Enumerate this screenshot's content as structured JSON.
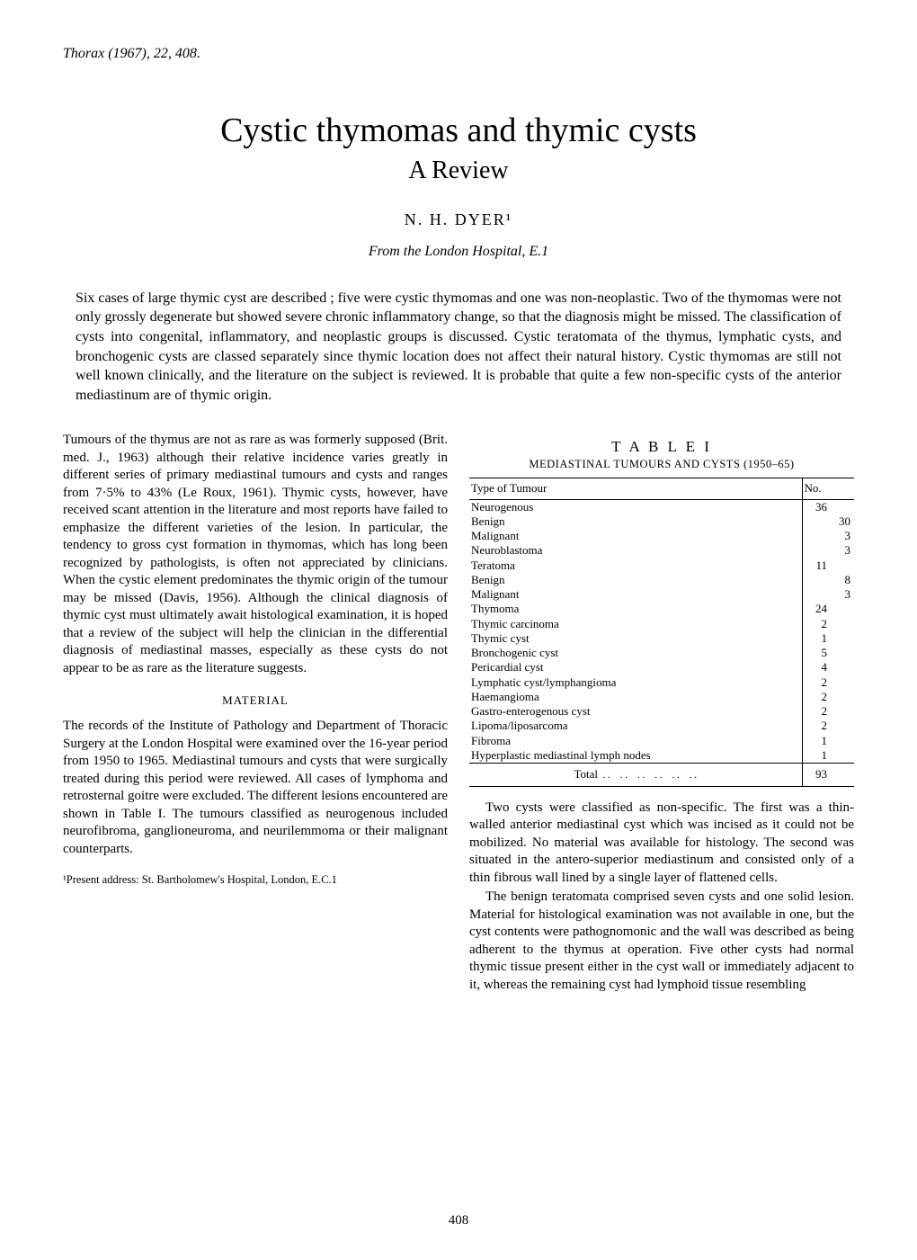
{
  "journal_cite": "Thorax (1967), 22, 408.",
  "title": "Cystic thymomas and thymic cysts",
  "subtitle": "A Review",
  "author": "N.  H.  DYER¹",
  "affiliation": "From the London Hospital, E.1",
  "abstract": "Six cases of large thymic cyst are described ; five were cystic thymomas and one was non-neoplastic. Two of the thymomas were not only grossly degenerate but showed severe chronic inflammatory change, so that the diagnosis might be missed. The classification of cysts into congenital, inflammatory, and neoplastic groups is discussed. Cystic teratomata of the thymus, lymphatic cysts, and bronchogenic cysts are classed separately since thymic location does not affect their natural history. Cystic thymomas are still not well known clinically, and the literature on the subject is reviewed. It is probable that quite a few non-specific cysts of the anterior mediastinum are of thymic origin.",
  "left_col": {
    "p1": "Tumours of the thymus are not as rare as was formerly supposed (Brit. med. J., 1963) although their relative incidence varies greatly in different series of primary mediastinal tumours and cysts and ranges from 7·5% to 43% (Le Roux, 1961). Thymic cysts, however, have received scant attention in the literature and most reports have failed to emphasize the different varieties of the lesion. In particular, the tendency to gross cyst formation in thymomas, which has long been recognized by pathologists, is often not appreciated by clinicians. When the cystic element predominates the thymic origin of the tumour may be missed (Davis, 1956). Although the clinical diagnosis of thymic cyst must ultimately await histological examination, it is hoped that a review of the subject will help the clinician in the differential diagnosis of mediastinal masses, especially as these cysts do not appear to be as rare as the literature suggests.",
    "section_head": "MATERIAL",
    "p2": "The records of the Institute of Pathology and Department of Thoracic Surgery at the London Hospital were examined over the 16-year period from 1950 to 1965. Mediastinal tumours and cysts that were surgically treated during this period were reviewed. All cases of lymphoma and retrosternal goitre were excluded. The different lesions encountered are shown in Table I. The tumours classified as neurogenous included neurofibroma, ganglioneuroma, and neurilemmoma or their malignant counterparts.",
    "footnote": "¹Present address: St. Bartholomew's Hospital, London, E.C.1"
  },
  "right_col": {
    "p1": "Two cysts were classified as non-specific. The first was a thin-walled anterior mediastinal cyst which was incised as it could not be mobilized. No material was available for histology. The second was situated in the antero-superior mediastinum and consisted only of a thin fibrous wall lined by a single layer of flattened cells.",
    "p2": "The benign teratomata comprised seven cysts and one solid lesion. Material for histological examination was not available in one, but the cyst contents were pathognomonic and the wall was described as being adherent to the thymus at operation. Five other cysts had normal thymic tissue present either in the cyst wall or immediately adjacent to it, whereas the remaining cyst had lymphoid tissue resembling"
  },
  "table": {
    "title": "T A B L E   I",
    "subtitle": "MEDIASTINAL TUMOURS AND CYSTS (1950–65)",
    "header_type": "Type of Tumour",
    "header_no": "No.",
    "rows": [
      {
        "label": "Neurogenous",
        "sub": false,
        "main": "36",
        "col2": ""
      },
      {
        "label": "Benign",
        "sub": true,
        "main": "",
        "col2": "30"
      },
      {
        "label": "Malignant",
        "sub": true,
        "main": "",
        "col2": "3"
      },
      {
        "label": "Neuroblastoma",
        "sub": true,
        "main": "",
        "col2": "3"
      },
      {
        "label": "Teratoma",
        "sub": false,
        "main": "11",
        "col2": ""
      },
      {
        "label": "Benign",
        "sub": true,
        "main": "",
        "col2": "8"
      },
      {
        "label": "Malignant",
        "sub": true,
        "main": "",
        "col2": "3"
      },
      {
        "label": "Thymoma",
        "sub": false,
        "main": "24",
        "col2": ""
      },
      {
        "label": "Thymic carcinoma",
        "sub": false,
        "main": "2",
        "col2": ""
      },
      {
        "label": "Thymic cyst",
        "sub": false,
        "main": "1",
        "col2": ""
      },
      {
        "label": "Bronchogenic cyst",
        "sub": false,
        "main": "5",
        "col2": ""
      },
      {
        "label": "Pericardial cyst",
        "sub": false,
        "main": "4",
        "col2": ""
      },
      {
        "label": "Lymphatic cyst/lymphangioma",
        "sub": false,
        "main": "2",
        "col2": ""
      },
      {
        "label": "Haemangioma",
        "sub": false,
        "main": "2",
        "col2": ""
      },
      {
        "label": "Gastro-enterogenous cyst",
        "sub": false,
        "main": "2",
        "col2": ""
      },
      {
        "label": "Lipoma/liposarcoma",
        "sub": false,
        "main": "2",
        "col2": ""
      },
      {
        "label": "Fibroma",
        "sub": false,
        "main": "1",
        "col2": ""
      },
      {
        "label": "Hyperplastic mediastinal lymph nodes",
        "sub": false,
        "main": "1",
        "col2": ""
      }
    ],
    "total_label": "Total",
    "total_value": "93"
  },
  "page_number": "408"
}
